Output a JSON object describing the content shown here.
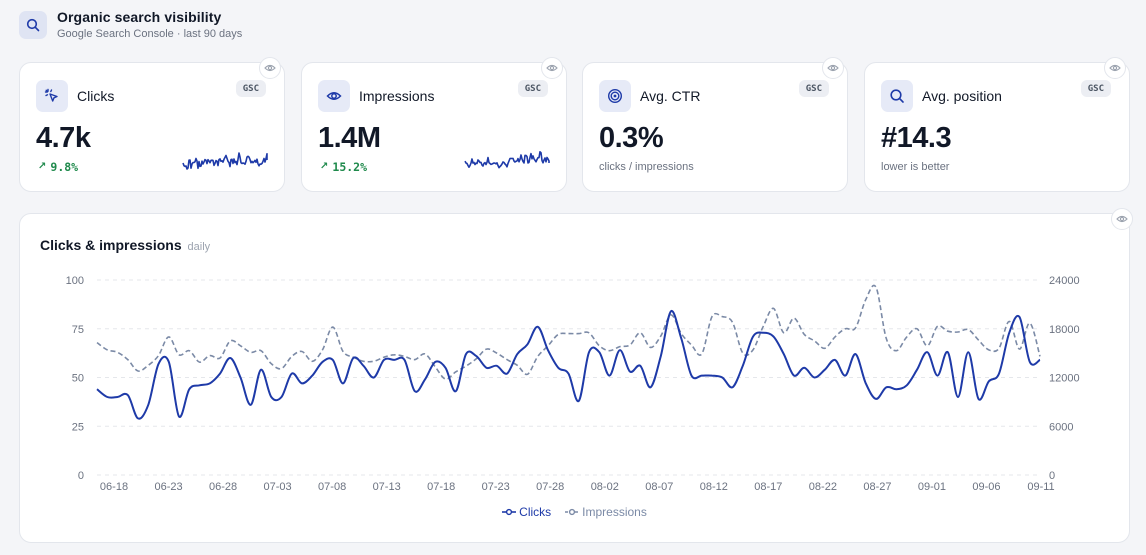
{
  "header": {
    "title": "Organic search visibility",
    "subtitle": "Google Search Console · last 90 days",
    "icon": "search-icon"
  },
  "colors": {
    "primary": "#1e3aa8",
    "secondary": "#7b8aa6",
    "positive": "#1f8a4c",
    "background": "#f4f5f8"
  },
  "kpis": [
    {
      "label": "Clicks",
      "icon": "cursor-click-icon",
      "badge": "GSC",
      "value": "4.7k",
      "delta": "9.8%",
      "delta_direction": "up"
    },
    {
      "label": "Impressions",
      "icon": "eye-icon",
      "badge": "GSC",
      "value": "1.4M",
      "delta": "15.2%",
      "delta_direction": "up"
    },
    {
      "label": "Avg. CTR",
      "icon": "target-icon",
      "badge": "GSC",
      "value": "0.3%",
      "note": "clicks / impressions"
    },
    {
      "label": "Avg. position",
      "icon": "search-icon",
      "badge": "GSC",
      "value": "#14.3",
      "note": "lower is better"
    }
  ],
  "chart": {
    "title": "Clicks & impressions",
    "subtitle": "daily"
  },
  "chart_data": {
    "type": "line",
    "title": "Clicks & impressions",
    "subtitle": "daily",
    "x_ticks": [
      "06-18",
      "06-23",
      "06-28",
      "07-03",
      "07-08",
      "07-13",
      "07-18",
      "07-23",
      "07-28",
      "08-02",
      "08-07",
      "08-12",
      "08-17",
      "08-22",
      "08-27",
      "09-01",
      "09-06",
      "09-11"
    ],
    "y_left": {
      "ticks": [
        0,
        25,
        50,
        75,
        100
      ],
      "ylim": [
        0,
        100
      ]
    },
    "y_right": {
      "ticks": [
        0,
        6000,
        12000,
        18000,
        24000
      ],
      "ylim": [
        0,
        24000
      ]
    },
    "grid": true,
    "legend": "bottom-center",
    "series": [
      {
        "name": "Clicks",
        "axis": "left",
        "color": "#1e3aa8",
        "values": [
          44,
          40,
          40,
          41,
          29,
          36,
          57,
          58,
          30,
          44,
          46,
          47,
          52,
          60,
          50,
          36,
          54,
          40,
          40,
          52,
          47,
          51,
          58,
          59,
          47,
          60,
          56,
          50,
          59,
          59,
          59,
          43,
          49,
          58,
          55,
          43,
          62,
          61,
          55,
          56,
          52,
          62,
          67,
          76,
          64,
          55,
          52,
          38,
          63,
          63,
          51,
          64,
          53,
          56,
          45,
          61,
          84,
          70,
          51,
          51,
          51,
          50,
          45,
          56,
          71,
          73,
          71,
          62,
          51,
          55,
          50,
          54,
          59,
          51,
          62,
          47,
          39,
          45,
          44,
          46,
          54,
          63,
          51,
          63,
          40,
          63,
          39,
          48,
          52,
          73,
          81,
          58,
          59
        ]
      },
      {
        "name": "Impressions",
        "axis": "right",
        "color": "#7b8aa6",
        "values": [
          16300,
          15400,
          15100,
          14200,
          12800,
          13500,
          14700,
          17000,
          14800,
          15300,
          13900,
          14700,
          14400,
          16500,
          15900,
          15100,
          15300,
          13700,
          13100,
          14600,
          15200,
          14000,
          15400,
          18200,
          15200,
          14500,
          14000,
          14000,
          14500,
          14800,
          14600,
          14200,
          14900,
          13300,
          11800,
          12700,
          13400,
          14300,
          15500,
          15000,
          14200,
          13500,
          12400,
          14600,
          15900,
          17300,
          17400,
          17400,
          17500,
          15900,
          15300,
          15800,
          16000,
          17500,
          15700,
          17100,
          19700,
          17400,
          16000,
          14900,
          19500,
          19500,
          18800,
          15000,
          15400,
          18300,
          20500,
          17500,
          19300,
          17300,
          16500,
          15600,
          17000,
          18000,
          18100,
          21600,
          23100,
          16800,
          15300,
          17000,
          18000,
          15900,
          18300,
          17700,
          17600,
          17900,
          16600,
          15400,
          15600,
          18900,
          15500,
          18700,
          14600
        ]
      }
    ]
  }
}
